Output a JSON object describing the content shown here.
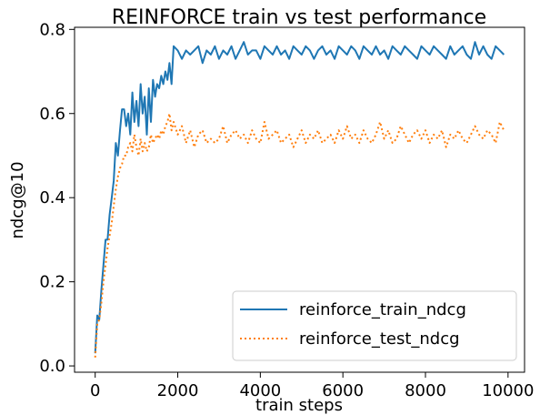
{
  "chart_data": {
    "type": "line",
    "title": "REINFORCE train vs test performance",
    "xlabel": "train steps",
    "ylabel": "ndcg@10",
    "xlim": [
      -500,
      10400
    ],
    "ylim": [
      -0.015,
      0.805
    ],
    "xticks": [
      0,
      2000,
      4000,
      6000,
      8000,
      10000
    ],
    "xtick_labels": [
      "0",
      "2000",
      "4000",
      "6000",
      "8000",
      "10000"
    ],
    "yticks": [
      0.0,
      0.2,
      0.4,
      0.6,
      0.8
    ],
    "ytick_labels": [
      "0.0",
      "0.2",
      "0.4",
      "0.6",
      "0.8"
    ],
    "grid": false,
    "legend_position": "lower-right",
    "series": [
      {
        "name": "reinforce_train_ndcg",
        "color": "#1f77b4",
        "style": "solid",
        "x": [
          0,
          50,
          100,
          150,
          200,
          250,
          300,
          350,
          400,
          450,
          500,
          550,
          600,
          650,
          700,
          750,
          800,
          850,
          900,
          950,
          1000,
          1050,
          1100,
          1150,
          1200,
          1250,
          1300,
          1350,
          1400,
          1450,
          1500,
          1550,
          1600,
          1650,
          1700,
          1750,
          1800,
          1850,
          1900,
          2000,
          2100,
          2200,
          2300,
          2400,
          2500,
          2600,
          2700,
          2800,
          2900,
          3000,
          3100,
          3200,
          3300,
          3400,
          3500,
          3600,
          3700,
          3800,
          3900,
          4000,
          4100,
          4200,
          4300,
          4400,
          4500,
          4600,
          4700,
          4800,
          4900,
          5000,
          5100,
          5200,
          5300,
          5400,
          5500,
          5600,
          5700,
          5800,
          5900,
          6000,
          6100,
          6200,
          6300,
          6400,
          6500,
          6600,
          6700,
          6800,
          6900,
          7000,
          7100,
          7200,
          7300,
          7400,
          7500,
          7600,
          7700,
          7800,
          7900,
          8000,
          8100,
          8200,
          8300,
          8400,
          8500,
          8600,
          8700,
          8800,
          8900,
          9000,
          9100,
          9200,
          9300,
          9400,
          9500,
          9600,
          9700,
          9800,
          9900
        ],
        "y": [
          0.03,
          0.12,
          0.11,
          0.18,
          0.24,
          0.3,
          0.3,
          0.36,
          0.4,
          0.44,
          0.53,
          0.5,
          0.56,
          0.61,
          0.61,
          0.57,
          0.6,
          0.55,
          0.65,
          0.58,
          0.63,
          0.57,
          0.67,
          0.6,
          0.64,
          0.55,
          0.66,
          0.58,
          0.68,
          0.64,
          0.67,
          0.66,
          0.69,
          0.67,
          0.7,
          0.68,
          0.72,
          0.67,
          0.76,
          0.75,
          0.73,
          0.75,
          0.74,
          0.75,
          0.76,
          0.72,
          0.75,
          0.74,
          0.76,
          0.73,
          0.75,
          0.74,
          0.76,
          0.73,
          0.75,
          0.77,
          0.74,
          0.75,
          0.75,
          0.73,
          0.76,
          0.75,
          0.74,
          0.76,
          0.74,
          0.75,
          0.73,
          0.76,
          0.75,
          0.74,
          0.76,
          0.75,
          0.73,
          0.75,
          0.76,
          0.74,
          0.75,
          0.73,
          0.76,
          0.75,
          0.74,
          0.76,
          0.75,
          0.73,
          0.76,
          0.75,
          0.74,
          0.76,
          0.74,
          0.75,
          0.73,
          0.76,
          0.75,
          0.74,
          0.76,
          0.75,
          0.74,
          0.73,
          0.76,
          0.75,
          0.74,
          0.76,
          0.75,
          0.74,
          0.73,
          0.76,
          0.74,
          0.75,
          0.76,
          0.74,
          0.73,
          0.77,
          0.74,
          0.76,
          0.74,
          0.73,
          0.76,
          0.75,
          0.74
        ]
      },
      {
        "name": "reinforce_test_ndcg",
        "color": "#ff7f0e",
        "style": "dotted",
        "x": [
          0,
          50,
          100,
          150,
          200,
          250,
          300,
          350,
          400,
          450,
          500,
          550,
          600,
          650,
          700,
          750,
          800,
          850,
          900,
          950,
          1000,
          1050,
          1100,
          1150,
          1200,
          1250,
          1300,
          1350,
          1400,
          1450,
          1500,
          1550,
          1600,
          1650,
          1700,
          1750,
          1800,
          1850,
          1900,
          2000,
          2100,
          2200,
          2300,
          2400,
          2500,
          2600,
          2700,
          2800,
          2900,
          3000,
          3100,
          3200,
          3300,
          3400,
          3500,
          3600,
          3700,
          3800,
          3900,
          4000,
          4100,
          4200,
          4300,
          4400,
          4500,
          4600,
          4700,
          4800,
          4900,
          5000,
          5100,
          5200,
          5300,
          5400,
          5500,
          5600,
          5700,
          5800,
          5900,
          6000,
          6100,
          6200,
          6300,
          6400,
          6500,
          6600,
          6700,
          6800,
          6900,
          7000,
          7100,
          7200,
          7300,
          7400,
          7500,
          7600,
          7700,
          7800,
          7900,
          8000,
          8100,
          8200,
          8300,
          8400,
          8500,
          8600,
          8700,
          8800,
          8900,
          9000,
          9100,
          9200,
          9300,
          9400,
          9500,
          9600,
          9700,
          9800,
          9900
        ],
        "y": [
          0.02,
          0.1,
          0.11,
          0.15,
          0.2,
          0.24,
          0.28,
          0.31,
          0.34,
          0.38,
          0.42,
          0.45,
          0.47,
          0.48,
          0.5,
          0.5,
          0.52,
          0.53,
          0.51,
          0.55,
          0.52,
          0.5,
          0.54,
          0.51,
          0.53,
          0.51,
          0.52,
          0.55,
          0.53,
          0.54,
          0.55,
          0.54,
          0.56,
          0.55,
          0.57,
          0.58,
          0.6,
          0.56,
          0.58,
          0.55,
          0.57,
          0.53,
          0.56,
          0.52,
          0.55,
          0.56,
          0.53,
          0.54,
          0.53,
          0.54,
          0.57,
          0.53,
          0.55,
          0.56,
          0.54,
          0.55,
          0.53,
          0.56,
          0.54,
          0.53,
          0.58,
          0.54,
          0.55,
          0.56,
          0.53,
          0.54,
          0.55,
          0.52,
          0.54,
          0.56,
          0.53,
          0.55,
          0.54,
          0.56,
          0.53,
          0.54,
          0.55,
          0.53,
          0.56,
          0.54,
          0.57,
          0.54,
          0.55,
          0.53,
          0.56,
          0.54,
          0.53,
          0.55,
          0.58,
          0.54,
          0.56,
          0.53,
          0.54,
          0.57,
          0.55,
          0.53,
          0.55,
          0.56,
          0.54,
          0.56,
          0.53,
          0.55,
          0.54,
          0.56,
          0.52,
          0.55,
          0.54,
          0.56,
          0.54,
          0.53,
          0.55,
          0.57,
          0.55,
          0.54,
          0.56,
          0.55,
          0.53,
          0.58,
          0.56
        ]
      }
    ]
  }
}
